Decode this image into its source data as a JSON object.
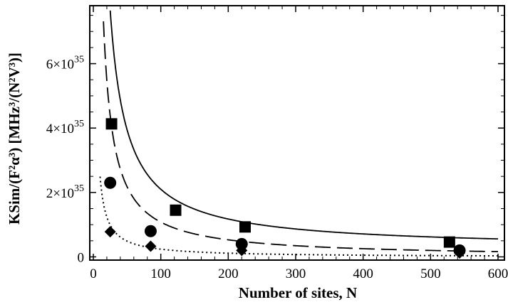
{
  "chart_data": {
    "type": "scatter",
    "xlabel": "Number of sites, N",
    "ylabel": "KSim/(F²α³) [MHz³/(N²V³)]",
    "xlim": [
      0,
      600
    ],
    "ylim": [
      -1e+34,
      7.8e+35
    ],
    "x_ticks": [
      0,
      100,
      200,
      300,
      400,
      500,
      600
    ],
    "x_tick_labels": [
      "0",
      "100",
      "200",
      "300",
      "400",
      "500",
      "600"
    ],
    "y_ticks": [
      0,
      2e+35,
      4e+35,
      6e+35
    ],
    "y_tick_labels": [
      {
        "mantissa": "0",
        "exponent": ""
      },
      {
        "mantissa": "2×10",
        "exponent": "35"
      },
      {
        "mantissa": "4×10",
        "exponent": "35"
      },
      {
        "mantissa": "6×10",
        "exponent": "35"
      }
    ],
    "grid": false,
    "series": [
      {
        "marker": "square",
        "line": "solid",
        "points": [
          [
            27,
            4.13e+35
          ],
          [
            122,
            1.45e+35
          ],
          [
            225,
            9.3e+34
          ],
          [
            528,
            4.6e+34
          ]
        ],
        "fit": {
          "a": 1.85e+37,
          "b": 2.5e+34
        }
      },
      {
        "marker": "circle",
        "line": "dashed",
        "points": [
          [
            25,
            2.3e+35
          ],
          [
            85,
            8e+34
          ],
          [
            220,
            4e+34
          ],
          [
            543,
            2e+34
          ]
        ],
        "fit": {
          "a": 1.1e+37,
          "b": -2e+33
        }
      },
      {
        "marker": "diamond",
        "line": "dotted",
        "points": [
          [
            25,
            7.8e+34
          ],
          [
            85,
            3.3e+34
          ],
          [
            220,
            2e+34
          ],
          [
            543,
            1.2e+34
          ]
        ],
        "fit": {
          "a": 2.5e+36,
          "b": -1e+33
        }
      }
    ],
    "colors": {
      "ink": "#000000",
      "background": "#ffffff"
    }
  }
}
